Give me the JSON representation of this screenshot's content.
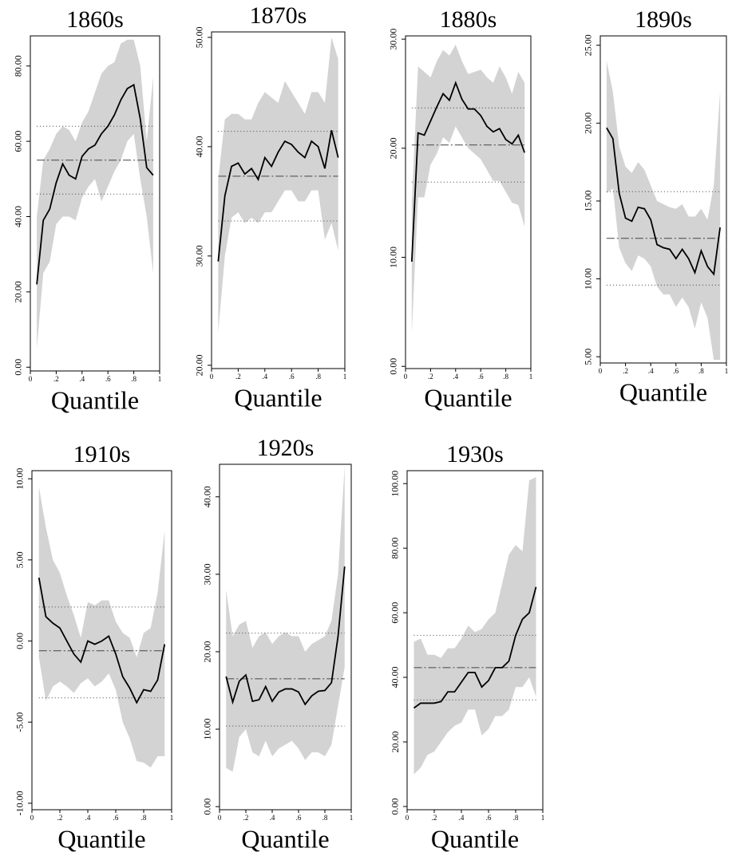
{
  "chart_data": [
    {
      "type": "line",
      "title": "1860s",
      "x_label": "Quantile",
      "color": "#000000",
      "band_color": "#d3d3d3",
      "x": [
        0.05,
        0.1,
        0.15,
        0.2,
        0.25,
        0.3,
        0.35,
        0.4,
        0.45,
        0.5,
        0.55,
        0.6,
        0.65,
        0.7,
        0.75,
        0.8,
        0.85,
        0.9,
        0.95
      ],
      "values": [
        22,
        39,
        42,
        49,
        54,
        51,
        50,
        56,
        58,
        59,
        62,
        64,
        67,
        71,
        74,
        75,
        66,
        53,
        51
      ],
      "upper": [
        40,
        55,
        58,
        62,
        64,
        63,
        60,
        65,
        68,
        73,
        78,
        80,
        81,
        86,
        87,
        87,
        80,
        60,
        77
      ],
      "lower": [
        5,
        25,
        28,
        38,
        40,
        40,
        39,
        45,
        48,
        50,
        44,
        48,
        52,
        55,
        60,
        62,
        50,
        40,
        25
      ],
      "ols": 55,
      "ols_upper": 64,
      "ols_lower": 46,
      "xlim": [
        0,
        1
      ],
      "xticks": [
        0,
        {
          "value": 0.2,
          "label": ".2"
        },
        {
          "value": 0.4,
          "label": ".4"
        },
        {
          "value": 0.6,
          "label": ".6"
        },
        {
          "value": 0.8,
          "label": ".8"
        },
        1
      ],
      "ylim": [
        -1,
        88
      ],
      "yticks": [
        {
          "value": 0,
          "label": "0.00"
        },
        {
          "value": 20,
          "label": "20.00"
        },
        {
          "value": 40,
          "label": "40.00"
        },
        {
          "value": 60,
          "label": "60.00"
        },
        {
          "value": 80,
          "label": "80.00"
        }
      ]
    },
    {
      "type": "line",
      "title": "1870s",
      "x_label": "Quantile",
      "color": "#000000",
      "band_color": "#d3d3d3",
      "x": [
        0.05,
        0.1,
        0.15,
        0.2,
        0.25,
        0.3,
        0.35,
        0.4,
        0.45,
        0.5,
        0.55,
        0.6,
        0.65,
        0.7,
        0.75,
        0.8,
        0.85,
        0.9,
        0.95
      ],
      "values": [
        29.5,
        35.5,
        38.2,
        38.5,
        37.5,
        38,
        37,
        39,
        38.2,
        39.5,
        40.5,
        40.2,
        39.5,
        39,
        40.5,
        40,
        38,
        41.5,
        39
      ],
      "upper": [
        37,
        42.5,
        43,
        43,
        42.5,
        42.5,
        44,
        45,
        44.5,
        44,
        46,
        45,
        44,
        43,
        45,
        45,
        44,
        50,
        48
      ],
      "lower": [
        23,
        30,
        33.5,
        34,
        33,
        33.5,
        33,
        34,
        34,
        35,
        36,
        36,
        35,
        35,
        36,
        36,
        31.5,
        33,
        30.5
      ],
      "ols": 37.3,
      "ols_upper": 41.4,
      "ols_lower": 33.2,
      "xlim": [
        0,
        1
      ],
      "xticks": [
        0,
        {
          "value": 0.2,
          "label": ".2"
        },
        {
          "value": 0.4,
          "label": ".4"
        },
        {
          "value": 0.6,
          "label": ".6"
        },
        {
          "value": 0.8,
          "label": ".8"
        },
        1
      ],
      "ylim": [
        19.7,
        50.5
      ],
      "yticks": [
        {
          "value": 20,
          "label": "20.00"
        },
        {
          "value": 30,
          "label": "30.00"
        },
        {
          "value": 40,
          "label": "40.00"
        },
        {
          "value": 50,
          "label": "50.00"
        }
      ]
    },
    {
      "type": "line",
      "title": "1880s",
      "x_label": "Quantile",
      "color": "#000000",
      "band_color": "#d3d3d3",
      "x": [
        0.05,
        0.1,
        0.15,
        0.2,
        0.25,
        0.3,
        0.35,
        0.4,
        0.45,
        0.5,
        0.55,
        0.6,
        0.65,
        0.7,
        0.75,
        0.8,
        0.85,
        0.9,
        0.95
      ],
      "values": [
        9.6,
        21.4,
        21.2,
        22.5,
        23.8,
        25,
        24.4,
        26,
        24.5,
        23.6,
        23.6,
        23,
        22,
        21.5,
        21.8,
        20.8,
        20.4,
        21.2,
        19.6
      ],
      "upper": [
        15,
        27.5,
        27,
        26.5,
        28,
        29,
        28.5,
        29.5,
        28,
        26.8,
        27,
        27.2,
        26.5,
        26,
        27.5,
        26.5,
        25,
        27,
        26
      ],
      "lower": [
        3,
        15.5,
        15.5,
        18.5,
        19.5,
        21,
        20.5,
        22,
        21,
        20,
        19.5,
        19,
        18,
        17,
        17,
        16,
        15,
        14.8,
        12.8
      ],
      "ols": 20.3,
      "ols_upper": 23.7,
      "ols_lower": 16.9,
      "xlim": [
        0,
        1
      ],
      "xticks": [
        0,
        {
          "value": 0.2,
          "label": ".2"
        },
        {
          "value": 0.4,
          "label": ".4"
        },
        {
          "value": 0.6,
          "label": ".6"
        },
        {
          "value": 0.8,
          "label": ".8"
        },
        1
      ],
      "ylim": [
        -0.2,
        30.3
      ],
      "yticks": [
        {
          "value": 0,
          "label": "0.00"
        },
        {
          "value": 10,
          "label": "10.00"
        },
        {
          "value": 20,
          "label": "20.00"
        },
        {
          "value": 30,
          "label": "30.00"
        }
      ]
    },
    {
      "type": "line",
      "title": "1890s",
      "x_label": "Quantile",
      "color": "#000000",
      "band_color": "#d3d3d3",
      "x": [
        0.05,
        0.1,
        0.15,
        0.2,
        0.25,
        0.3,
        0.35,
        0.4,
        0.45,
        0.5,
        0.55,
        0.6,
        0.65,
        0.7,
        0.75,
        0.8,
        0.85,
        0.9,
        0.95
      ],
      "values": [
        19.7,
        19,
        15.5,
        13.9,
        13.7,
        14.6,
        14.5,
        13.8,
        12.2,
        12,
        11.9,
        11.3,
        11.9,
        11.3,
        10.4,
        11.8,
        10.8,
        10.3,
        13.3
      ],
      "upper": [
        24,
        22,
        18.5,
        17.2,
        16.8,
        17.5,
        17,
        16,
        15,
        14.8,
        14.6,
        14.5,
        14.8,
        14,
        14,
        14.5,
        13.8,
        16,
        22
      ],
      "lower": [
        15.5,
        15.8,
        12,
        11,
        10.5,
        11.5,
        11.3,
        10.8,
        9.5,
        9,
        9,
        8.2,
        8.8,
        8.2,
        6.8,
        8.5,
        7.5,
        4.8,
        4.8
      ],
      "ols": 12.6,
      "ols_upper": 15.6,
      "ols_lower": 9.6,
      "xlim": [
        0,
        1
      ],
      "xticks": [
        0,
        {
          "value": 0.2,
          "label": ".2"
        },
        {
          "value": 0.4,
          "label": ".4"
        },
        {
          "value": 0.6,
          "label": ".6"
        },
        {
          "value": 0.8,
          "label": ".8"
        },
        1
      ],
      "ylim": [
        4.6,
        25.6
      ],
      "yticks": [
        {
          "value": 5,
          "label": "5.00"
        },
        {
          "value": 10,
          "label": "10.00"
        },
        {
          "value": 15,
          "label": "15.00"
        },
        {
          "value": 20,
          "label": "20.00"
        },
        {
          "value": 25,
          "label": "25.00"
        }
      ]
    },
    {
      "type": "line",
      "title": "1910s",
      "x_label": "Quantile",
      "color": "#000000",
      "band_color": "#d3d3d3",
      "x": [
        0.05,
        0.1,
        0.15,
        0.2,
        0.25,
        0.3,
        0.35,
        0.4,
        0.45,
        0.5,
        0.55,
        0.6,
        0.65,
        0.7,
        0.75,
        0.8,
        0.85,
        0.9,
        0.95
      ],
      "values": [
        3.9,
        1.5,
        1.1,
        0.8,
        0,
        -0.8,
        -1.3,
        0,
        -0.2,
        0,
        0.3,
        -0.8,
        -2.2,
        -2.9,
        -3.8,
        -3,
        -3.1,
        -2.4,
        -0.2
      ],
      "upper": [
        9.5,
        7,
        5,
        4.2,
        2.8,
        1.6,
        0.2,
        2.4,
        2.2,
        2.5,
        2.5,
        1.2,
        0.5,
        0.2,
        -1,
        0.5,
        0.8,
        3,
        6.8
      ],
      "lower": [
        -1,
        -3.7,
        -2.8,
        -2.5,
        -2.8,
        -3.2,
        -2.6,
        -2.3,
        -2.8,
        -2.5,
        -2,
        -3,
        -5,
        -6,
        -7.4,
        -7.5,
        -7.8,
        -7.1,
        -7.1
      ],
      "ols": -0.6,
      "ols_upper": 2.1,
      "ols_lower": -3.5,
      "xlim": [
        0,
        1
      ],
      "xticks": [
        0,
        {
          "value": 0.2,
          "label": ".2"
        },
        {
          "value": 0.4,
          "label": ".4"
        },
        {
          "value": 0.6,
          "label": ".6"
        },
        {
          "value": 0.8,
          "label": ".8"
        },
        1
      ],
      "ylim": [
        -10.4,
        10.5
      ],
      "yticks": [
        {
          "value": -10,
          "label": "-10.00"
        },
        {
          "value": -5,
          "label": "-5.00"
        },
        {
          "value": 0,
          "label": "0.00"
        },
        {
          "value": 5,
          "label": "5.00"
        },
        {
          "value": 10,
          "label": "10.00"
        }
      ]
    },
    {
      "type": "line",
      "title": "1920s",
      "x_label": "Quantile",
      "color": "#000000",
      "band_color": "#d3d3d3",
      "x": [
        0.05,
        0.1,
        0.15,
        0.2,
        0.25,
        0.3,
        0.35,
        0.4,
        0.45,
        0.5,
        0.55,
        0.6,
        0.65,
        0.7,
        0.75,
        0.8,
        0.85,
        0.9,
        0.95
      ],
      "values": [
        16.8,
        13.5,
        16.2,
        17,
        13.6,
        13.8,
        15.5,
        13.6,
        14.8,
        15.2,
        15.2,
        14.8,
        13.2,
        14.3,
        14.9,
        15,
        16,
        22,
        31
      ],
      "upper": [
        28,
        22,
        23.5,
        24,
        20.5,
        22,
        22.5,
        21,
        22,
        22.5,
        22,
        22,
        20,
        21,
        21.5,
        22,
        24,
        30,
        44
      ],
      "lower": [
        5,
        4.5,
        9,
        10,
        7,
        6.5,
        8.5,
        6.5,
        7.5,
        8,
        8.5,
        7.5,
        6,
        7,
        7,
        6.5,
        8,
        13,
        18
      ],
      "ols": 16.5,
      "ols_upper": 22.4,
      "ols_lower": 10.4,
      "xlim": [
        0,
        1
      ],
      "xticks": [
        0,
        {
          "value": 0.2,
          "label": ".2"
        },
        {
          "value": 0.4,
          "label": ".4"
        },
        {
          "value": 0.6,
          "label": ".6"
        },
        {
          "value": 0.8,
          "label": ".8"
        },
        1
      ],
      "ylim": [
        -0.4,
        44.2
      ],
      "yticks": [
        {
          "value": 0,
          "label": "0.00"
        },
        {
          "value": 10,
          "label": "10.00"
        },
        {
          "value": 20,
          "label": "20.00"
        },
        {
          "value": 30,
          "label": "30.00"
        },
        {
          "value": 40,
          "label": "40.00"
        }
      ]
    },
    {
      "type": "line",
      "title": "1930s",
      "x_label": "Quantile",
      "color": "#000000",
      "band_color": "#d3d3d3",
      "x": [
        0.05,
        0.1,
        0.15,
        0.2,
        0.25,
        0.3,
        0.35,
        0.4,
        0.45,
        0.5,
        0.55,
        0.6,
        0.65,
        0.7,
        0.75,
        0.8,
        0.85,
        0.9,
        0.95
      ],
      "values": [
        30.5,
        32,
        32,
        32,
        32.5,
        35.5,
        35.5,
        38.5,
        41.5,
        41.5,
        37,
        39,
        43,
        43,
        45,
        53,
        58,
        60,
        68
      ],
      "upper": [
        51,
        52,
        47,
        47,
        46,
        49,
        49,
        52,
        56,
        54,
        55,
        58,
        60,
        69,
        78,
        81,
        79,
        101,
        102
      ],
      "lower": [
        10,
        12,
        16,
        17,
        20,
        23,
        25,
        26,
        30,
        30,
        22,
        24,
        28,
        28,
        30,
        37,
        37,
        40,
        34
      ],
      "ols": 43,
      "ols_upper": 53,
      "ols_lower": 33,
      "xlim": [
        0,
        1
      ],
      "xticks": [
        0,
        {
          "value": 0.2,
          "label": ".2"
        },
        {
          "value": 0.4,
          "label": ".4"
        },
        {
          "value": 0.6,
          "label": ".6"
        },
        {
          "value": 0.8,
          "label": ".8"
        },
        1
      ],
      "ylim": [
        -1,
        104
      ],
      "yticks": [
        {
          "value": 0,
          "label": "0.00"
        },
        {
          "value": 20,
          "label": "20.00"
        },
        {
          "value": 40,
          "label": "40.00"
        },
        {
          "value": 60,
          "label": "60.00"
        },
        {
          "value": 80,
          "label": "80.00"
        },
        {
          "value": 100,
          "label": "100.00"
        }
      ]
    }
  ]
}
